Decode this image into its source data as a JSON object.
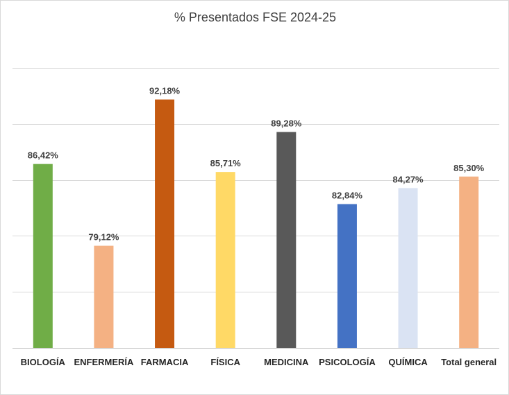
{
  "chart_data": {
    "type": "bar",
    "title": "% Presentados FSE 2024-25",
    "categories": [
      "BIOLOGÍA",
      "ENFERMERÍA",
      "FARMACIA",
      "FÍSICA",
      "MEDICINA",
      "PSICOLOGÍA",
      "QUÍMICA",
      "Total general"
    ],
    "values": [
      86.42,
      79.12,
      92.18,
      85.71,
      89.28,
      82.84,
      84.27,
      85.3
    ],
    "value_labels": [
      "86,42%",
      "79,12%",
      "92,18%",
      "85,71%",
      "89,28%",
      "82,84%",
      "84,27%",
      "85,30%"
    ],
    "colors": [
      "#70ad47",
      "#f4b183",
      "#c55a11",
      "#ffd966",
      "#595959",
      "#4472c4",
      "#dae3f3",
      "#f4b183"
    ],
    "ylim": [
      70,
      95
    ],
    "grid": true,
    "legend": "none"
  }
}
